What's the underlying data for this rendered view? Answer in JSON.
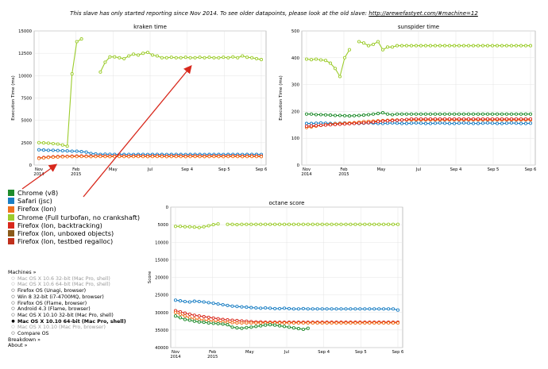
{
  "notice": {
    "text": "This slave has only started reporting since Nov 2014. To see older datapoints, please look at the old slave:",
    "link": "http://arewefastyet.com/#machine=12"
  },
  "legend": [
    {
      "label": "Chrome (v8)",
      "color": "#1f8c2c"
    },
    {
      "label": "Safari (jsc)",
      "color": "#1b7fc4"
    },
    {
      "label": "Firefox (Ion)",
      "color": "#f0701e"
    },
    {
      "label": "Chrome (Full turbofan, no crankshaft)",
      "color": "#9ccc2c"
    },
    {
      "label": "Firefox (Ion, backtracking)",
      "color": "#d8281c"
    },
    {
      "label": "Firefox (Ion, unboxed objects)",
      "color": "#8a5a1a"
    },
    {
      "label": "Firefox (Ion, testbed regalloc)",
      "color": "#c0301c"
    }
  ],
  "machines": {
    "header": "Machines »",
    "items": [
      {
        "label": "Mac OS X 10.6 32-bit (Mac Pro, shell)",
        "style": "grey"
      },
      {
        "label": "Mac OS X 10.6 64-bit (Mac Pro, shell)",
        "style": "grey"
      },
      {
        "label": "Firefox OS (Unagi, browser)",
        "style": "normal"
      },
      {
        "label": "Win 8 32-bit (i7-4700MQ, browser)",
        "style": "normal"
      },
      {
        "label": "Firefox OS (Flame, browser)",
        "style": "normal"
      },
      {
        "label": "Android 4.3 (Flame, browser)",
        "style": "normal"
      },
      {
        "label": "Mac OS X 10.10 32-bit (Mac Pro, shell)",
        "style": "normal"
      },
      {
        "label": "Mac OS X 10.10 64-bit (Mac Pro, shell)",
        "style": "bold"
      },
      {
        "label": "Mac OS X 10.10 (Mac Pro, browser)",
        "style": "grey"
      },
      {
        "label": "Compare OS",
        "style": "normal"
      }
    ],
    "breakdown": "Breakdown »",
    "about": "About »"
  },
  "chart_data": [
    {
      "type": "line",
      "title": "kraken time",
      "ylabel": "Execution Time (ms)",
      "ylim": [
        0,
        15000
      ],
      "yticks": [
        "0",
        "2500",
        "5000",
        "7500",
        "10000",
        "12500",
        "15000"
      ],
      "x_ticks": [
        {
          "label": "Nov\n2014"
        },
        {
          "label": "Feb\n2015"
        },
        {
          "label": "May"
        },
        {
          "label": "Jul"
        },
        {
          "label": "Sep 4"
        },
        {
          "label": "Sep 5"
        },
        {
          "label": "Sep 6"
        }
      ],
      "series": [
        {
          "name": "Chrome (Full turbofan, no crankshaft)",
          "color": "#9ccc2c",
          "y": [
            2500,
            2480,
            2450,
            2400,
            2350,
            2250,
            2100,
            10200,
            13800,
            14100,
            null,
            null,
            null,
            10400,
            11500,
            12100,
            12100,
            12000,
            11900,
            12200,
            12400,
            12300,
            12500,
            12600,
            12300,
            12200,
            12000,
            12000,
            12050,
            12000,
            12000,
            12050,
            12000,
            12000,
            12050,
            12000,
            12050,
            12000,
            12000,
            12050,
            12000,
            12100,
            12000,
            12200,
            12050,
            12000,
            11900,
            11800
          ]
        },
        {
          "name": "Safari (jsc)",
          "color": "#1b7fc4",
          "y": [
            1700,
            1680,
            1650,
            1650,
            1620,
            1600,
            1580,
            1550,
            1550,
            1500,
            1450,
            1300,
            1250,
            1200,
            1220,
            1210,
            1200,
            1200,
            1190,
            1200,
            1180,
            1190,
            1200,
            1180,
            1190,
            1200,
            1190,
            1180,
            1190,
            1200,
            1190,
            1180,
            1190,
            1200,
            1190,
            1180,
            1190,
            1200,
            1190,
            1180,
            1190,
            1200,
            1190,
            1180,
            1190,
            1200,
            1190,
            1180
          ]
        },
        {
          "name": "Firefox (Ion, backtracking)",
          "color": "#d8281c",
          "y": [
            800,
            850,
            900,
            920,
            950,
            970,
            980,
            990,
            1000,
            1010,
            1000,
            990,
            1000,
            1010,
            1000,
            990,
            1000,
            1010,
            1000,
            990,
            1000,
            1010,
            1000,
            990,
            1000,
            1010,
            1000,
            990,
            1000,
            1010,
            1000,
            990,
            1000,
            1010,
            1000,
            990,
            1000,
            1010,
            1000,
            990,
            1000,
            1010,
            1000,
            990,
            1000,
            1010,
            1000,
            990
          ]
        },
        {
          "name": "Firefox (Ion)",
          "color": "#f0701e",
          "y": [
            750,
            800,
            850,
            880,
            900,
            920,
            930,
            940,
            950,
            960,
            950,
            940,
            950,
            960,
            950,
            940,
            950,
            960,
            950,
            940,
            950,
            960,
            950,
            940,
            950,
            960,
            950,
            940,
            950,
            960,
            950,
            940,
            950,
            960,
            950,
            940,
            950,
            960,
            950,
            940,
            950,
            960,
            950,
            940,
            950,
            960,
            950,
            940
          ]
        }
      ]
    },
    {
      "type": "line",
      "title": "sunspider time",
      "ylabel": "Execution Time (ms)",
      "ylim": [
        0,
        500
      ],
      "yticks": [
        "0",
        "100",
        "200",
        "300",
        "400",
        "500"
      ],
      "x_ticks": [
        {
          "label": "Nov\n2014"
        },
        {
          "label": "Feb\n2015"
        },
        {
          "label": "May"
        },
        {
          "label": "Jul"
        },
        {
          "label": "Sep 4"
        },
        {
          "label": "Sep 5"
        },
        {
          "label": "Sep 6"
        }
      ],
      "series": [
        {
          "name": "Chrome (Full turbofan, no crankshaft)",
          "color": "#9ccc2c",
          "y": [
            395,
            393,
            395,
            392,
            390,
            380,
            360,
            330,
            400,
            430,
            null,
            460,
            455,
            445,
            450,
            460,
            430,
            440,
            440,
            445,
            445,
            445,
            445,
            445,
            445,
            445,
            445,
            445,
            445,
            445,
            445,
            445,
            445,
            445,
            445,
            445,
            445,
            445,
            445,
            445,
            445,
            445,
            445,
            445,
            445,
            445,
            445,
            445
          ]
        },
        {
          "name": "Chrome (v8)",
          "color": "#1f8c2c",
          "y": [
            190,
            190,
            188,
            188,
            187,
            186,
            185,
            185,
            184,
            183,
            184,
            185,
            186,
            188,
            190,
            192,
            195,
            190,
            188,
            190,
            190,
            190,
            190,
            190,
            190,
            190,
            190,
            190,
            190,
            190,
            190,
            190,
            190,
            190,
            190,
            190,
            190,
            190,
            190,
            190,
            190,
            190,
            190,
            190,
            190,
            190,
            190,
            190
          ]
        },
        {
          "name": "Safari (jsc)",
          "color": "#1b7fc4",
          "y": [
            155,
            155,
            156,
            157,
            156,
            155,
            155,
            156,
            157,
            156,
            155,
            155,
            156,
            157,
            156,
            155,
            155,
            156,
            157,
            156,
            155,
            155,
            156,
            157,
            156,
            155,
            155,
            156,
            157,
            156,
            155,
            155,
            156,
            157,
            156,
            155,
            155,
            156,
            157,
            156,
            155,
            155,
            156,
            157,
            156,
            155,
            155,
            156
          ]
        },
        {
          "name": "Firefox (Ion)",
          "color": "#f0701e",
          "y": [
            140,
            142,
            145,
            148,
            150,
            152,
            154,
            155,
            156,
            157,
            158,
            160,
            162,
            163,
            164,
            165,
            166,
            167,
            168,
            168,
            168,
            168,
            168,
            168,
            168,
            168,
            168,
            168,
            168,
            168,
            168,
            168,
            168,
            168,
            168,
            168,
            168,
            168,
            168,
            168,
            168,
            168,
            168,
            168,
            168,
            168,
            168,
            168
          ]
        },
        {
          "name": "Firefox (Ion, backtracking)",
          "color": "#d8281c",
          "y": [
            145,
            146,
            147,
            148,
            149,
            150,
            151,
            152,
            153,
            154,
            155,
            156,
            157,
            158,
            160,
            162,
            164,
            165,
            166,
            167,
            168,
            170,
            172,
            172,
            172,
            172,
            172,
            172,
            172,
            172,
            172,
            172,
            172,
            172,
            172,
            172,
            172,
            172,
            172,
            172,
            172,
            172,
            172,
            172,
            172,
            172,
            172,
            172
          ]
        }
      ]
    },
    {
      "type": "line",
      "title": "octane score",
      "ylabel": "Score",
      "ylim": [
        0,
        40000
      ],
      "reversed_y": true,
      "yticks": [
        "0",
        "5000",
        "10000",
        "15000",
        "20000",
        "25000",
        "30000",
        "35000",
        "40000"
      ],
      "x_ticks": [
        {
          "label": "Nov\n2014"
        },
        {
          "label": "Feb\n2015"
        },
        {
          "label": "May"
        },
        {
          "label": "Jul"
        },
        {
          "label": "Sep 4"
        },
        {
          "label": "Sep 5"
        },
        {
          "label": "Sep 6"
        }
      ],
      "series": [
        {
          "name": "Chrome (Full turbofan, no crankshaft)",
          "color": "#9ccc2c",
          "y": [
            5500,
            5500,
            5600,
            5600,
            5700,
            5800,
            5600,
            5300,
            5000,
            4800,
            null,
            4900,
            4900,
            5000,
            4900,
            4900,
            4900,
            4900,
            4900,
            4900,
            4900,
            4900,
            4900,
            4900,
            4900,
            4900,
            4900,
            4900,
            4900,
            4900,
            4900,
            4900,
            4900,
            4900,
            4900,
            4900,
            4900,
            4900,
            4900,
            4900,
            4900,
            4900,
            4900,
            4900,
            4900,
            4900,
            4900,
            4900
          ]
        },
        {
          "name": "Safari (jsc)",
          "color": "#1b7fc4",
          "y": [
            26500,
            26700,
            26900,
            27000,
            26800,
            26900,
            27000,
            27200,
            27400,
            27600,
            27800,
            28000,
            28200,
            28300,
            28400,
            28500,
            28600,
            28700,
            28800,
            28700,
            28800,
            28900,
            28900,
            28800,
            28900,
            29000,
            29000,
            28900,
            29000,
            29000,
            29000,
            29000,
            29000,
            29000,
            29000,
            29000,
            29000,
            29000,
            29000,
            29000,
            29000,
            29000,
            29000,
            29000,
            29000,
            29000,
            29000,
            29300
          ]
        },
        {
          "name": "Firefox (Ion, backtracking)",
          "color": "#d8281c",
          "y": [
            29500,
            29800,
            30200,
            30500,
            30800,
            31000,
            31200,
            31400,
            31600,
            31800,
            32000,
            32100,
            32200,
            32300,
            32400,
            32500,
            32600,
            32700,
            32700,
            32800,
            32800,
            32800,
            32800,
            32800,
            32800,
            32800,
            32800,
            32800,
            32800,
            32800,
            32800,
            32800,
            32800,
            32800,
            32800,
            32800,
            32800,
            32800,
            32800,
            32800,
            32800,
            32800,
            32800,
            32800,
            32800,
            32800,
            32800,
            32800
          ]
        },
        {
          "name": "Firefox (Ion)",
          "color": "#f0701e",
          "y": [
            30000,
            30500,
            31000,
            31500,
            31800,
            32000,
            32200,
            32300,
            32500,
            32600,
            32700,
            32800,
            32900,
            33000,
            33000,
            33000,
            33000,
            33000,
            33000,
            33000,
            33000,
            33000,
            33000,
            33000,
            33000,
            33000,
            33000,
            33000,
            33000,
            33000,
            33000,
            33000,
            33000,
            33000,
            33000,
            33000,
            33000,
            33000,
            33000,
            33000,
            33000,
            33000,
            33000,
            33000,
            33000,
            33000,
            33000,
            33000
          ]
        },
        {
          "name": "Chrome (v8)",
          "color": "#1f8c2c",
          "y": [
            31000,
            31500,
            32000,
            32200,
            32500,
            32700,
            32800,
            33000,
            33100,
            33200,
            33300,
            33500,
            34200,
            34400,
            34500,
            34300,
            34200,
            34000,
            33800,
            33600,
            33500,
            33600,
            33800,
            34000,
            34200,
            34400,
            34600,
            34800,
            34500,
            null,
            null,
            null,
            null,
            null,
            null,
            null,
            null,
            null,
            null,
            null,
            null,
            null,
            null,
            null,
            null,
            null,
            null,
            null
          ]
        }
      ]
    }
  ]
}
